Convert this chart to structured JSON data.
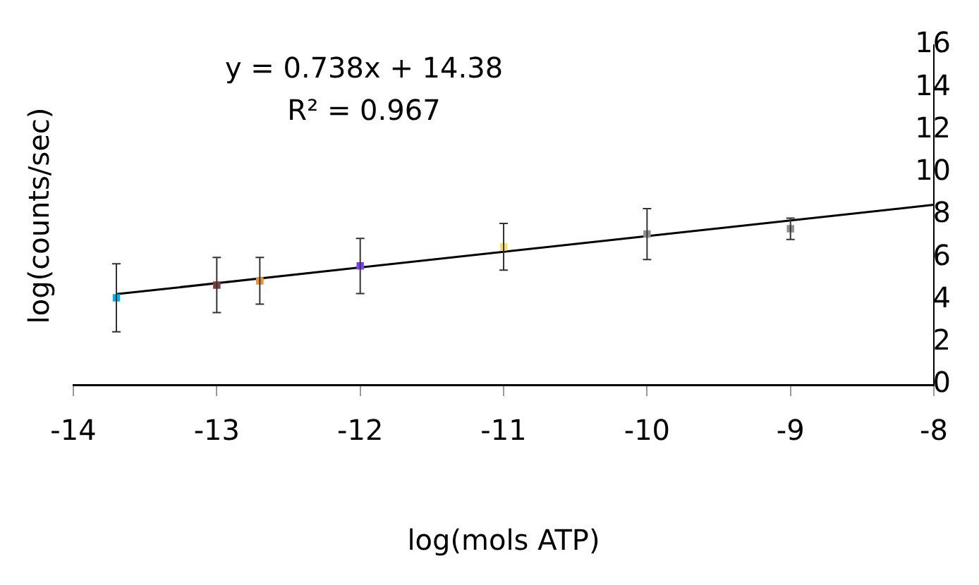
{
  "chart_data": {
    "type": "scatter",
    "xlabel": "log(mols ATP)",
    "ylabel": "log(counts/sec)",
    "annotations": [
      "y = 0.738x + 14.38",
      "R² = 0.967"
    ],
    "xlim": [
      -14,
      -8
    ],
    "xticks": [
      -14,
      -13,
      -12,
      -11,
      -10,
      -9,
      -8
    ],
    "ylim": [
      0,
      16
    ],
    "yticks": [
      0,
      2,
      4,
      6,
      8,
      10,
      12,
      14,
      16
    ],
    "grid": false,
    "legend": false,
    "marker": "square",
    "series": [
      {
        "type": "scatter",
        "x": [
          -13.7,
          -13,
          -12.7,
          -12,
          -11,
          -10,
          -9
        ],
        "values": [
          4.1,
          4.7,
          4.9,
          5.6,
          6.5,
          7.1,
          7.35
        ],
        "errors": [
          1.6,
          1.3,
          1.1,
          1.3,
          1.1,
          1.2,
          0.5
        ],
        "colors": [
          "#00b0f0",
          "#804040",
          "#f09030",
          "#8040ff",
          "#ffe060",
          "#909090",
          "#909090"
        ]
      },
      {
        "type": "line",
        "x": [
          -13.7,
          -8
        ],
        "values": [
          4.27,
          8.48
        ],
        "color": "#000000",
        "marker": "none",
        "line_style": "solid"
      }
    ]
  }
}
